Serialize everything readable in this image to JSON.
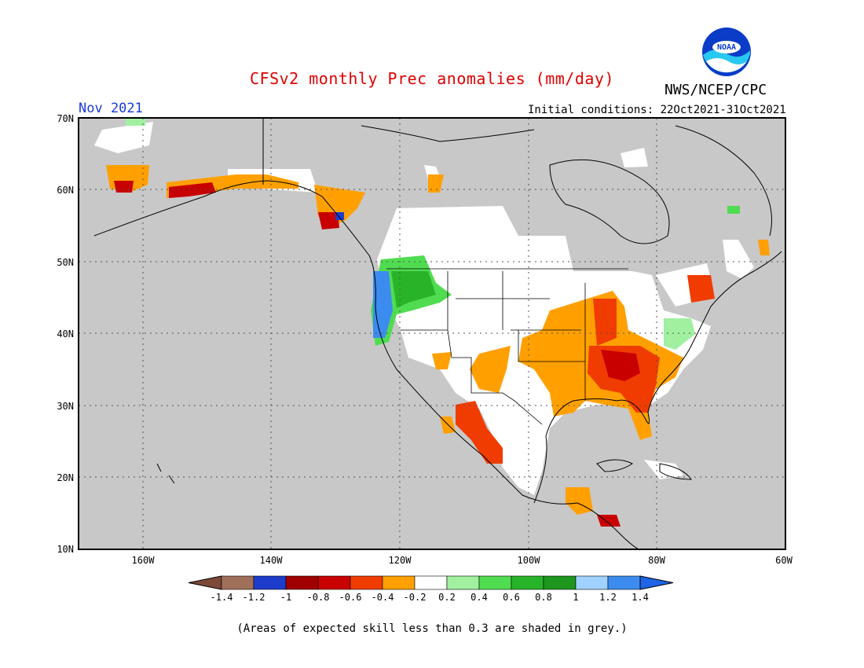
{
  "title": "CFSv2 monthly Prec anomalies (mm/day)",
  "agency": "NWS/NCEP/CPC",
  "logo_text": "NOAA",
  "valid_month": "Nov 2021",
  "initial_conditions": "Initial conditions: 22Oct2021-31Oct2021",
  "footnote": "(Areas of expected skill less than 0.3 are shaded in grey.)",
  "map": {
    "lon_range": [
      -171,
      -60
    ],
    "lat_range": [
      10,
      70
    ],
    "lat_labels": [
      "70N",
      "60N",
      "50N",
      "40N",
      "30N",
      "20N",
      "10N"
    ],
    "lon_labels": [
      "160W",
      "140W",
      "120W",
      "100W",
      "80W",
      "60W"
    ],
    "background_color": "#c8c8c8"
  },
  "legend": {
    "labels": [
      "-1.4",
      "-1.2",
      "-1",
      "-0.8",
      "-0.6",
      "-0.4",
      "-0.2",
      "0.2",
      "0.4",
      "0.6",
      "0.8",
      "1",
      "1.2",
      "1.4"
    ],
    "colors": [
      "#7d4a3a",
      "#a0705a",
      "#1e3ccc",
      "#a00000",
      "#c80000",
      "#f03c00",
      "#ffa000",
      "#ffffff",
      "#a0f0a0",
      "#50dc50",
      "#28b428",
      "#1e961e",
      "#a0d2ff",
      "#3c8cf0",
      "#1e64e6"
    ]
  },
  "anomaly_regions": [
    {
      "name": "pacific-northwest-wet",
      "color": "#3c8cf0",
      "lat": 44,
      "lon": -124
    },
    {
      "name": "idaho-wet",
      "color": "#28b428",
      "lat": 46,
      "lon": -117
    },
    {
      "name": "southeast-us-dry",
      "color": "#c80000",
      "lat": 34,
      "lon": -86
    },
    {
      "name": "ohio-valley-dry",
      "color": "#ffa000",
      "lat": 38,
      "lon": -90
    },
    {
      "name": "southern-plains-dry",
      "color": "#ffa000",
      "lat": 35,
      "lon": -100
    },
    {
      "name": "mexico-dry",
      "color": "#f03c00",
      "lat": 24,
      "lon": -107
    },
    {
      "name": "alaska-dry",
      "color": "#ffa000",
      "lat": 60,
      "lon": -150
    },
    {
      "name": "new-england-dry",
      "color": "#f03c00",
      "lat": 44,
      "lon": -70
    }
  ]
}
